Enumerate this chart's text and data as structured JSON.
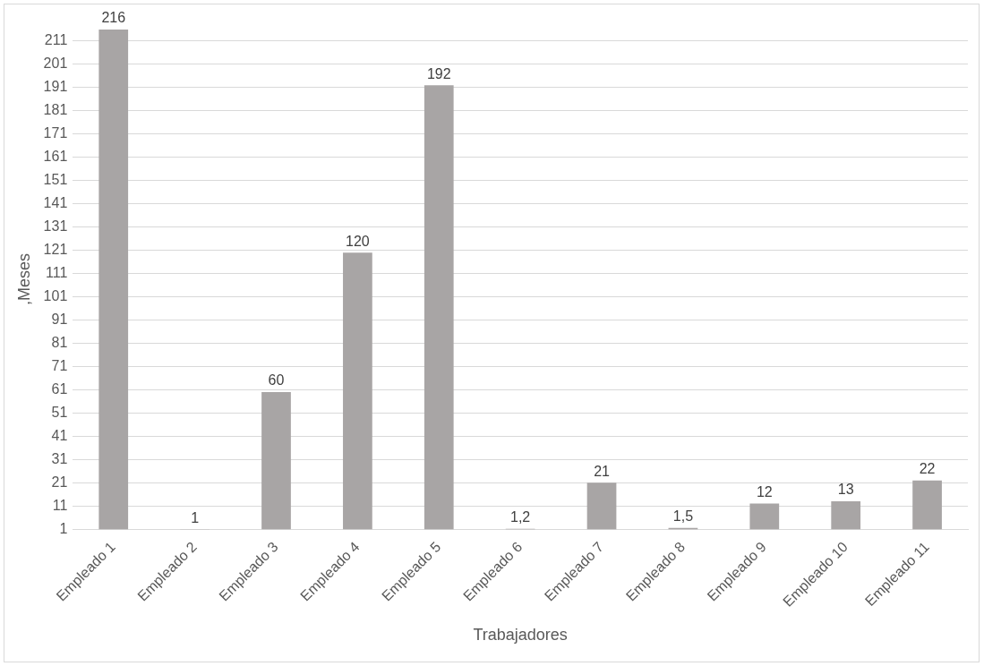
{
  "chart_data": {
    "type": "bar",
    "xlabel": "Trabajadores",
    "ylabel": ",Meses",
    "categories": [
      "Empleado 1",
      "Empleado 2",
      "Empleado 3",
      "Empleado 4",
      "Empleado 5",
      "Empleado 6",
      "Empleado 7",
      "Empleado 8",
      "Empleado 9",
      "Empleado 10",
      "Empleado 11"
    ],
    "values": [
      216,
      1,
      60,
      120,
      192,
      1.2,
      21,
      1.5,
      12,
      13,
      22
    ],
    "value_labels": [
      "216",
      "1",
      "60",
      "120",
      "192",
      "1,2",
      "21",
      "1,5",
      "12",
      "13",
      "22"
    ],
    "color": "#a8a5a5",
    "ylim": [
      1,
      216
    ],
    "yticks": [
      1,
      11,
      21,
      31,
      41,
      51,
      61,
      71,
      81,
      91,
      101,
      111,
      121,
      131,
      141,
      151,
      161,
      171,
      181,
      191,
      201,
      211
    ],
    "grid": "y",
    "legend": false
  }
}
